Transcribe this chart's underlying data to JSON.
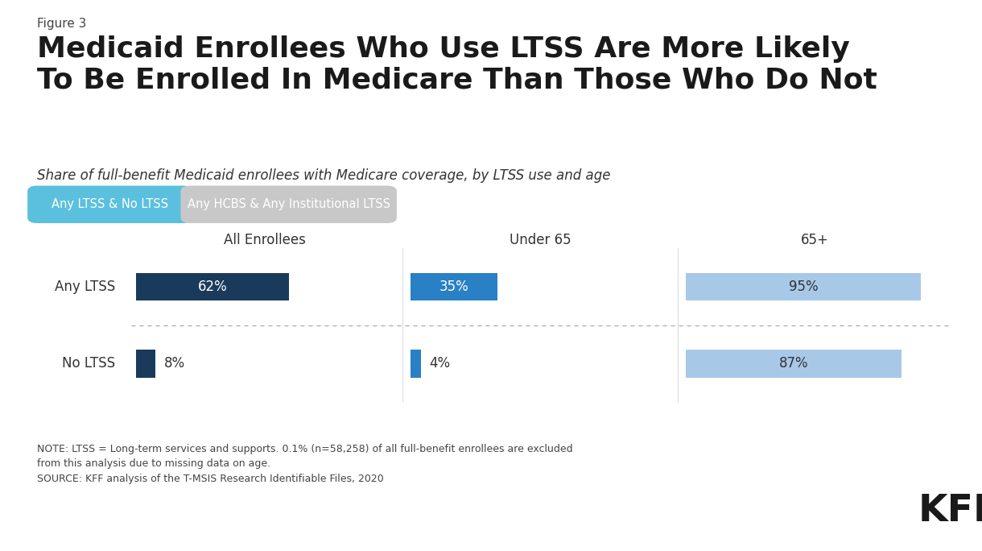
{
  "figure_label": "Figure 3",
  "title": "Medicaid Enrollees Who Use LTSS Are More Likely\nTo Be Enrolled In Medicare Than Those Who Do Not",
  "subtitle": "Share of full-benefit Medicaid enrollees with Medicare coverage, by LTSS use and age",
  "legend_tab1_label": "Any LTSS & No LTSS",
  "legend_tab2_label": "Any HCBS & Any Institutional LTSS",
  "legend_tab1_color": "#5bc0de",
  "legend_tab2_color": "#c8c8c8",
  "row_labels": [
    "Any LTSS",
    "No LTSS"
  ],
  "col_headers": [
    "All Enrollees",
    "Under 65",
    "65+"
  ],
  "values": [
    [
      62,
      35,
      95
    ],
    [
      8,
      4,
      87
    ]
  ],
  "bar_colors": [
    [
      "#1a3a5c",
      "#2980c4",
      "#a8c8e8"
    ],
    [
      "#1a3a5c",
      "#2980c4",
      "#a8c8e8"
    ]
  ],
  "note_text": "NOTE: LTSS = Long-term services and supports. 0.1% (n=58,258) of all full-benefit enrollees are excluded\nfrom this analysis due to missing data on age.\nSOURCE: KFF analysis of the T-MSIS Research Identifiable Files, 2020",
  "bg_color": "#ffffff",
  "bar_height": 0.5
}
